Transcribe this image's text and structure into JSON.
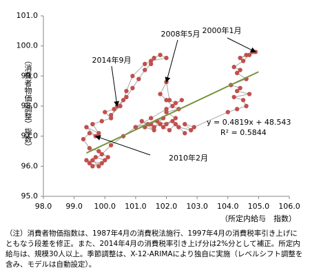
{
  "chart_data": {
    "type": "scatter",
    "x_label": "（所定内給与　指数）",
    "y_label": "（消費者物価(調整）指数）",
    "xlim": [
      98,
      106
    ],
    "ylim": [
      95,
      101
    ],
    "xticks": [
      {
        "value": 98,
        "label": "98.0"
      },
      {
        "value": 99,
        "label": "99.0"
      },
      {
        "value": 100,
        "label": "100.0"
      },
      {
        "value": 101,
        "label": "101.0"
      },
      {
        "value": 102,
        "label": "102.0"
      },
      {
        "value": 103,
        "label": "103.0"
      },
      {
        "value": 104,
        "label": "104.0"
      },
      {
        "value": 105,
        "label": "105.0"
      },
      {
        "value": 106,
        "label": "106.0"
      }
    ],
    "yticks": [
      {
        "value": 95,
        "label": "95.0"
      },
      {
        "value": 96,
        "label": "96.0"
      },
      {
        "value": 97,
        "label": "97.0"
      },
      {
        "value": 98,
        "label": "98.0"
      },
      {
        "value": 99,
        "label": "99.0"
      },
      {
        "value": 100,
        "label": "100.0"
      },
      {
        "value": 101,
        "label": "101.0"
      }
    ],
    "marker_color": "#c0504d",
    "line_color": "#a6a6a6",
    "x": [
      104.9,
      104.8,
      104.6,
      104.4,
      104.7,
      104.5,
      104.2,
      104.4,
      104.3,
      104.6,
      104.1,
      104.4,
      104.3,
      104.7,
      104.2,
      104.5,
      104.6,
      104.3,
      104.0,
      102.9,
      102.6,
      102.8,
      102.4,
      102.6,
      102.3,
      102.1,
      101.9,
      102.2,
      101.8,
      101.6,
      101.9,
      101.5,
      101.3,
      101.6,
      101.2,
      101.4,
      101.0,
      101.7,
      102.0,
      102.3,
      102.0,
      102.4,
      102.2,
      102.0,
      101.8,
      102.0,
      102.1,
      102.3,
      102.5,
      102.0,
      101.5,
      101.0,
      100.6,
      100.2,
      99.9,
      99.6,
      99.8,
      99.5,
      99.7,
      100.0,
      99.6,
      99.4,
      99.9,
      100.1,
      99.8,
      99.5,
      99.3,
      99.5,
      99.7,
      99.4,
      99.8,
      99.6,
      99.9,
      100.2,
      100.0,
      100.3,
      100.5,
      100.2,
      100.7,
      100.9,
      101.1,
      101.3,
      101.5,
      101.6,
      101.8,
      102.0,
      101.5,
      101.3,
      100.9,
      100.7,
      100.6,
      100.4
    ],
    "y": [
      99.8,
      99.8,
      99.7,
      99.6,
      99.7,
      99.5,
      99.3,
      99.2,
      99.1,
      98.9,
      98.7,
      98.6,
      98.5,
      98.4,
      98.3,
      98.2,
      98.0,
      97.9,
      97.8,
      97.3,
      97.4,
      97.2,
      97.3,
      97.1,
      97.4,
      97.2,
      97.3,
      97.5,
      97.4,
      97.3,
      97.6,
      97.4,
      97.3,
      97.2,
      97.5,
      97.4,
      97.3,
      97.5,
      97.4,
      97.6,
      97.8,
      97.9,
      98.0,
      98.2,
      98.4,
      98.8,
      98.2,
      98.1,
      98.2,
      97.9,
      97.6,
      97.3,
      97.0,
      96.7,
      96.4,
      96.2,
      96.0,
      96.1,
      96.3,
      96.2,
      96.0,
      96.2,
      96.1,
      96.3,
      96.5,
      96.6,
      96.9,
      97.1,
      97.0,
      97.3,
      97.1,
      97.4,
      97.5,
      97.6,
      97.8,
      97.9,
      98.0,
      97.7,
      98.3,
      98.6,
      98.9,
      99.2,
      99.4,
      99.6,
      99.7,
      99.6,
      99.5,
      99.4,
      99.0,
      98.5,
      98.2,
      98.0
    ],
    "trendline": {
      "color": "#77933c",
      "x": [
        99.4,
        105.0
      ],
      "y": [
        96.44,
        99.14
      ],
      "equation": "y = 0.4819x + 48.543",
      "r2": "R² = 0.5844"
    },
    "annotations": [
      {
        "text": "2000年1月",
        "x": 104.9,
        "y": 99.8
      },
      {
        "text": "2008年5月",
        "x": 102.0,
        "y": 98.8
      },
      {
        "text": "2014年9月",
        "x": 100.4,
        "y": 98.0
      },
      {
        "text": "2010年2月",
        "x": 99.7,
        "y": 97.0
      }
    ]
  },
  "note": "（注）消費者物価指数は、1987年4月の消費税法施行、1997年4月の消費税率引き上げにともなう段差を修正。また、2014年4月の消費税率引き上げ分は2%分として補正。所定内給与は、規模30人以上。季節調整は、X-12-ARIMAにより独自に実施（レベルシフト調整を含み、モデルは自動設定）。"
}
